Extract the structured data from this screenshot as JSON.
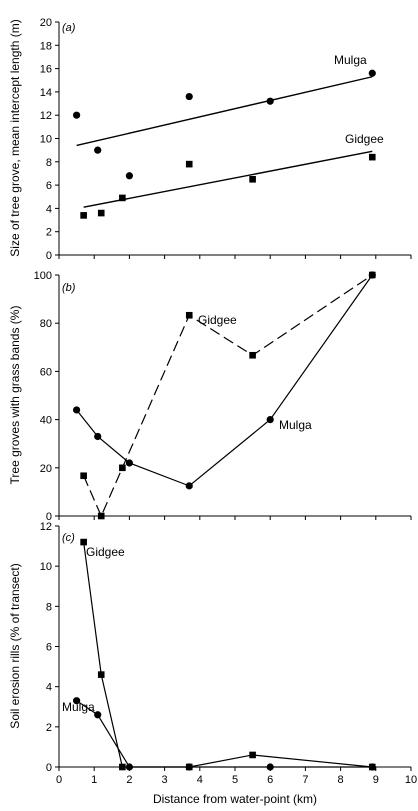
{
  "chart_data": [
    {
      "type": "scatter",
      "panel_label": "(a)",
      "ylabel": "Size of tree grove, mean intercept length (m)",
      "xlim": [
        0,
        10
      ],
      "ylim": [
        0,
        20
      ],
      "yticks": [
        "0",
        "2",
        "4",
        "6",
        "8",
        "10",
        "12",
        "14",
        "16",
        "18",
        "20"
      ],
      "series": [
        {
          "name": "Mulga",
          "marker": "circle",
          "x": [
            0.5,
            1.1,
            2.0,
            3.7,
            6.0,
            8.9
          ],
          "y": [
            12.0,
            9.0,
            6.8,
            13.6,
            13.2,
            15.6
          ],
          "trendline": [
            [
              0.5,
              9.4
            ],
            [
              8.9,
              15.3
            ]
          ]
        },
        {
          "name": "Gidgee",
          "marker": "square",
          "x": [
            0.7,
            1.2,
            1.8,
            3.7,
            5.5,
            8.9
          ],
          "y": [
            3.4,
            3.6,
            4.9,
            7.8,
            6.5,
            8.4
          ],
          "trendline": [
            [
              0.7,
              4.1
            ],
            [
              8.9,
              8.9
            ]
          ]
        }
      ]
    },
    {
      "type": "line",
      "panel_label": "(b)",
      "ylabel": "Tree groves with grass bands (%)",
      "xlim": [
        0,
        10
      ],
      "ylim": [
        0,
        100
      ],
      "yticks": [
        "0",
        "20",
        "40",
        "60",
        "80",
        "100"
      ],
      "series": [
        {
          "name": "Gidgee",
          "marker": "square",
          "dashed": true,
          "x": [
            0.7,
            1.2,
            1.8,
            3.7,
            5.5,
            8.9
          ],
          "y": [
            16.7,
            0,
            20,
            83.3,
            66.7,
            100
          ]
        },
        {
          "name": "Mulga",
          "marker": "circle",
          "dashed": false,
          "x": [
            0.5,
            1.1,
            2.0,
            3.7,
            6.0,
            8.9
          ],
          "y": [
            44,
            33,
            22,
            12.5,
            40,
            100
          ]
        }
      ]
    },
    {
      "type": "line",
      "panel_label": "(c)",
      "ylabel": "Soil erosion rills (% of transect)",
      "xlabel": "Distance from water-point (km)",
      "xlim": [
        0,
        10
      ],
      "ylim": [
        0,
        12
      ],
      "xticks": [
        "0",
        "1",
        "2",
        "3",
        "4",
        "5",
        "6",
        "7",
        "8",
        "9",
        "10"
      ],
      "yticks": [
        "0",
        "2",
        "4",
        "6",
        "8",
        "10",
        "12"
      ],
      "series": [
        {
          "name": "Gidgee",
          "marker": "square",
          "dashed": false,
          "x": [
            0.7,
            1.2,
            1.8,
            3.7,
            5.5,
            8.9
          ],
          "y": [
            11.2,
            4.6,
            0,
            0,
            0.6,
            0
          ]
        },
        {
          "name": "Mulga",
          "marker": "circle",
          "dashed": false,
          "x": [
            0.5,
            1.1,
            2.0,
            3.7,
            6.0,
            8.9
          ],
          "y": [
            3.3,
            2.6,
            0,
            0,
            0,
            0
          ]
        }
      ]
    }
  ]
}
